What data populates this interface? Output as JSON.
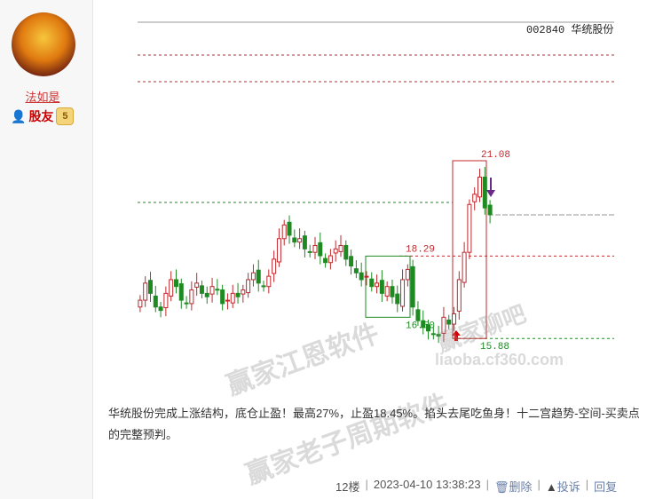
{
  "user": {
    "name": "法如是",
    "rank": "股友",
    "level": "5"
  },
  "chart": {
    "title": "002840 华统股份",
    "labels": {
      "high": "21.08",
      "mid": "18.29",
      "box_low": "16.50",
      "low": "15.88"
    },
    "closes": [
      17.0,
      17.5,
      17.2,
      16.8,
      16.7,
      17.2,
      17.6,
      17.4,
      17.0,
      16.9,
      17.3,
      17.5,
      17.2,
      17.1,
      17.4,
      17.3,
      16.9,
      17.0,
      17.2,
      17.1,
      17.3,
      17.6,
      17.8,
      17.5,
      17.4,
      17.7,
      18.2,
      18.8,
      19.2,
      18.9,
      18.7,
      18.8,
      18.5,
      18.4,
      18.6,
      18.3,
      18.1,
      18.3,
      18.5,
      18.6,
      18.2,
      18.0,
      17.8,
      17.6,
      17.7,
      17.4,
      17.5,
      17.2,
      17.4,
      17.1,
      16.9,
      17.6,
      17.9,
      16.8,
      16.4,
      16.2,
      16.1,
      16.0,
      15.95,
      16.5,
      16.3,
      16.6,
      17.6,
      18.4,
      19.8,
      20.1,
      20.6,
      19.7,
      19.5
    ],
    "colors": {
      "up": "#c0282d",
      "down": "#1e8a22"
    }
  },
  "post": {
    "text": "华统股份完成上涨结构，底仓止盈！最高27%，止盈18.45%。掐头去尾吃鱼身！十二宫趋势-空间-买卖点的完整预判。"
  },
  "footer": {
    "floor": "12楼",
    "time": "2023-04-10 13:38:23",
    "delete": "删除",
    "report": "投诉",
    "reply": "回复",
    "sep": "|"
  },
  "watermarks": [
    "赢家江恩软件",
    "赢家老子周期软件",
    "赢家聊吧",
    "liaoba.cf360.com"
  ]
}
